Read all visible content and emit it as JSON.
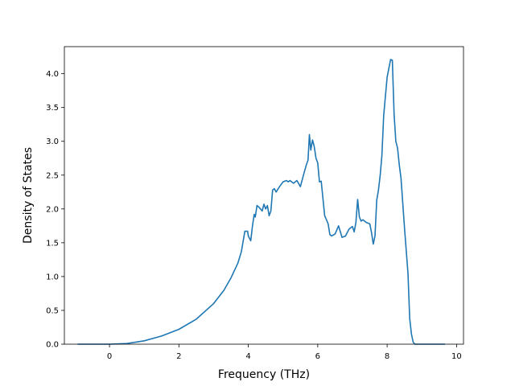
{
  "chart_data": {
    "type": "line",
    "title": "",
    "xlabel": "Frequency (THz)",
    "ylabel": "Density of States",
    "xlim": [
      -1.3,
      10.2
    ],
    "ylim": [
      0.0,
      4.4
    ],
    "xticks": [
      0,
      2,
      4,
      6,
      8,
      10
    ],
    "xtick_labels": [
      "0",
      "2",
      "4",
      "6",
      "8",
      "10"
    ],
    "yticks": [
      0.0,
      0.5,
      1.0,
      1.5,
      2.0,
      2.5,
      3.0,
      3.5,
      4.0
    ],
    "ytick_labels": [
      "0.0",
      "0.5",
      "1.0",
      "1.5",
      "2.0",
      "2.5",
      "3.0",
      "3.5",
      "4.0"
    ],
    "grid": false,
    "line_color": "#1f77b4",
    "series": [
      {
        "x": [
          -0.9,
          0.0,
          0.5,
          1.0,
          1.5,
          2.0,
          2.5,
          3.0,
          3.3,
          3.5,
          3.7,
          3.8,
          3.9,
          3.98,
          4.0,
          4.07,
          4.12,
          4.17,
          4.2,
          4.25,
          4.3,
          4.4,
          4.45,
          4.5,
          4.55,
          4.6,
          4.65,
          4.7,
          4.75,
          4.8,
          4.9,
          5.0,
          5.1,
          5.15,
          5.2,
          5.3,
          5.4,
          5.5,
          5.6,
          5.67,
          5.72,
          5.76,
          5.8,
          5.85,
          5.9,
          5.95,
          6.0,
          6.05,
          6.1,
          6.2,
          6.3,
          6.35,
          6.4,
          6.5,
          6.6,
          6.7,
          6.8,
          6.9,
          7.0,
          7.05,
          7.1,
          7.15,
          7.2,
          7.25,
          7.3,
          7.4,
          7.5,
          7.55,
          7.6,
          7.65,
          7.7,
          7.75,
          7.8,
          7.85,
          7.9,
          8.0,
          8.1,
          8.15,
          8.2,
          8.25,
          8.3,
          8.35,
          8.4,
          8.5,
          8.6,
          8.65,
          8.7,
          8.75,
          8.8,
          8.85,
          9.0,
          9.3,
          9.65
        ],
        "y": [
          0.0,
          0.0,
          0.01,
          0.05,
          0.12,
          0.22,
          0.37,
          0.6,
          0.8,
          0.98,
          1.2,
          1.37,
          1.67,
          1.67,
          1.6,
          1.53,
          1.75,
          1.92,
          1.88,
          2.05,
          2.03,
          1.97,
          2.07,
          2.0,
          2.05,
          1.9,
          1.97,
          2.28,
          2.3,
          2.25,
          2.33,
          2.4,
          2.42,
          2.4,
          2.42,
          2.38,
          2.42,
          2.33,
          2.52,
          2.65,
          2.72,
          3.1,
          2.87,
          3.02,
          2.92,
          2.75,
          2.68,
          2.4,
          2.41,
          1.9,
          1.78,
          1.62,
          1.6,
          1.63,
          1.75,
          1.58,
          1.6,
          1.7,
          1.74,
          1.66,
          1.8,
          2.14,
          1.88,
          1.82,
          1.84,
          1.8,
          1.78,
          1.65,
          1.48,
          1.6,
          2.13,
          2.28,
          2.5,
          2.8,
          3.38,
          3.95,
          4.21,
          4.2,
          3.4,
          3.0,
          2.9,
          2.65,
          2.45,
          1.72,
          1.05,
          0.38,
          0.15,
          0.03,
          0.0,
          0.0,
          0.0,
          0.0,
          0.0
        ]
      }
    ]
  }
}
